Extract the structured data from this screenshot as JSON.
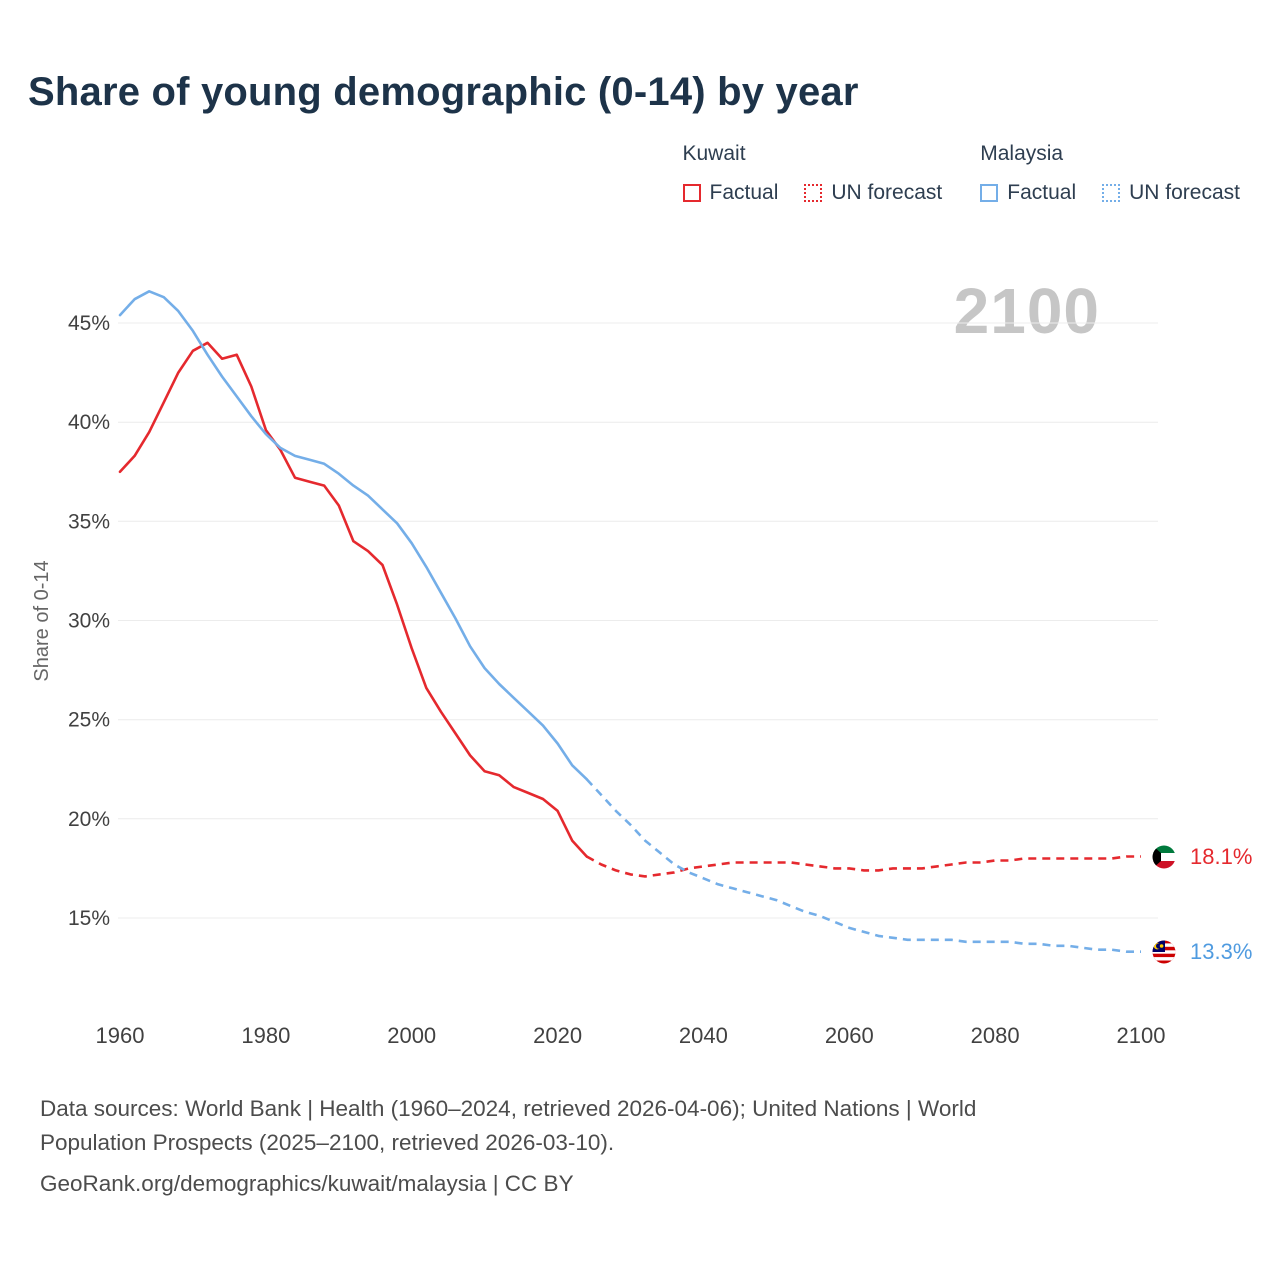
{
  "watermark": "2100",
  "colors": {
    "kuwait": "#e5292e",
    "malaysia": "#74aee8",
    "kuwait_label": "#e5292e",
    "malaysia_label": "#4f9be0"
  },
  "legend": {
    "groups": [
      {
        "country": "Kuwait",
        "items": [
          {
            "label": "Factual",
            "style": "solid"
          },
          {
            "label": "UN forecast",
            "style": "dotted"
          }
        ]
      },
      {
        "country": "Malaysia",
        "items": [
          {
            "label": "Factual",
            "style": "solid"
          },
          {
            "label": "UN forecast",
            "style": "dotted"
          }
        ]
      }
    ]
  },
  "chart_data": {
    "type": "line",
    "title": "Share of young demographic (0-14) by year",
    "xlabel": "",
    "ylabel": "Share of 0-14",
    "xlim": [
      1960,
      2100
    ],
    "ylim": [
      13,
      47
    ],
    "grid": "horizontal",
    "x_ticks": [
      1960,
      1980,
      2000,
      2020,
      2040,
      2060,
      2080,
      2100
    ],
    "y_ticks": [
      {
        "value": 15,
        "label": "15%"
      },
      {
        "value": 20,
        "label": "20%"
      },
      {
        "value": 25,
        "label": "25%"
      },
      {
        "value": 30,
        "label": "30%"
      },
      {
        "value": 35,
        "label": "35%"
      },
      {
        "value": 40,
        "label": "40%"
      },
      {
        "value": 45,
        "label": "45%"
      }
    ],
    "series": [
      {
        "id": "kuwait-factual",
        "name": "Kuwait Factual",
        "color": "#e5292e",
        "dashed": false,
        "x": [
          1960,
          1962,
          1964,
          1966,
          1968,
          1970,
          1972,
          1974,
          1976,
          1978,
          1980,
          1982,
          1984,
          1986,
          1988,
          1990,
          1992,
          1994,
          1996,
          1998,
          2000,
          2002,
          2004,
          2006,
          2008,
          2010,
          2012,
          2014,
          2016,
          2018,
          2020,
          2022,
          2024
        ],
        "values": [
          37.5,
          38.3,
          39.5,
          41.0,
          42.5,
          43.6,
          44.0,
          43.2,
          43.4,
          41.8,
          39.6,
          38.6,
          37.2,
          37.0,
          36.8,
          35.8,
          34.0,
          33.5,
          32.8,
          30.8,
          28.6,
          26.6,
          25.4,
          24.3,
          23.2,
          22.4,
          22.2,
          21.6,
          21.3,
          21.0,
          20.4,
          18.9,
          18.1
        ]
      },
      {
        "id": "kuwait-forecast",
        "name": "Kuwait UN forecast",
        "color": "#e5292e",
        "dashed": true,
        "x": [
          2024,
          2026,
          2028,
          2030,
          2032,
          2034,
          2036,
          2038,
          2040,
          2042,
          2044,
          2046,
          2048,
          2050,
          2052,
          2054,
          2056,
          2058,
          2060,
          2062,
          2064,
          2066,
          2068,
          2070,
          2072,
          2074,
          2076,
          2078,
          2080,
          2082,
          2084,
          2086,
          2088,
          2090,
          2092,
          2094,
          2096,
          2098,
          2100
        ],
        "values": [
          18.1,
          17.7,
          17.4,
          17.2,
          17.1,
          17.2,
          17.3,
          17.5,
          17.6,
          17.7,
          17.8,
          17.8,
          17.8,
          17.8,
          17.8,
          17.7,
          17.6,
          17.5,
          17.5,
          17.4,
          17.4,
          17.5,
          17.5,
          17.5,
          17.6,
          17.7,
          17.8,
          17.8,
          17.9,
          17.9,
          18.0,
          18.0,
          18.0,
          18.0,
          18.0,
          18.0,
          18.0,
          18.1,
          18.1
        ]
      },
      {
        "id": "malaysia-factual",
        "name": "Malaysia Factual",
        "color": "#74aee8",
        "dashed": false,
        "x": [
          1960,
          1962,
          1964,
          1966,
          1968,
          1970,
          1972,
          1974,
          1976,
          1978,
          1980,
          1982,
          1984,
          1986,
          1988,
          1990,
          1992,
          1994,
          1996,
          1998,
          2000,
          2002,
          2004,
          2006,
          2008,
          2010,
          2012,
          2014,
          2016,
          2018,
          2020,
          2022,
          2024
        ],
        "values": [
          45.4,
          46.2,
          46.6,
          46.3,
          45.6,
          44.6,
          43.4,
          42.3,
          41.3,
          40.3,
          39.4,
          38.7,
          38.3,
          38.1,
          37.9,
          37.4,
          36.8,
          36.3,
          35.6,
          34.9,
          33.9,
          32.7,
          31.4,
          30.1,
          28.7,
          27.6,
          26.8,
          26.1,
          25.4,
          24.7,
          23.8,
          22.7,
          22.0
        ]
      },
      {
        "id": "malaysia-forecast",
        "name": "Malaysia UN forecast",
        "color": "#74aee8",
        "dashed": true,
        "x": [
          2024,
          2026,
          2028,
          2030,
          2032,
          2034,
          2036,
          2038,
          2040,
          2042,
          2044,
          2046,
          2048,
          2050,
          2052,
          2054,
          2056,
          2058,
          2060,
          2062,
          2064,
          2066,
          2068,
          2070,
          2072,
          2074,
          2076,
          2078,
          2080,
          2082,
          2084,
          2086,
          2088,
          2090,
          2092,
          2094,
          2096,
          2098,
          2100
        ],
        "values": [
          22.0,
          21.2,
          20.4,
          19.7,
          18.9,
          18.3,
          17.7,
          17.3,
          17.0,
          16.7,
          16.5,
          16.3,
          16.1,
          15.9,
          15.6,
          15.3,
          15.1,
          14.8,
          14.5,
          14.3,
          14.1,
          14.0,
          13.9,
          13.9,
          13.9,
          13.9,
          13.8,
          13.8,
          13.8,
          13.8,
          13.7,
          13.7,
          13.6,
          13.6,
          13.5,
          13.4,
          13.4,
          13.3,
          13.3
        ]
      }
    ],
    "end_labels": [
      {
        "country": "Kuwait",
        "text": "18.1%",
        "color": "#e5292e"
      },
      {
        "country": "Malaysia",
        "text": "13.3%",
        "color": "#4f9be0"
      }
    ],
    "legend_position": "top-right"
  },
  "footer": {
    "lines": [
      "Data sources: World Bank | Health (1960–2024, retrieved 2026-04-06); United Nations | World",
      "Population Prospects (2025–2100, retrieved 2026-03-10).",
      "GeoRank.org/demographics/kuwait/malaysia | CC BY"
    ]
  }
}
